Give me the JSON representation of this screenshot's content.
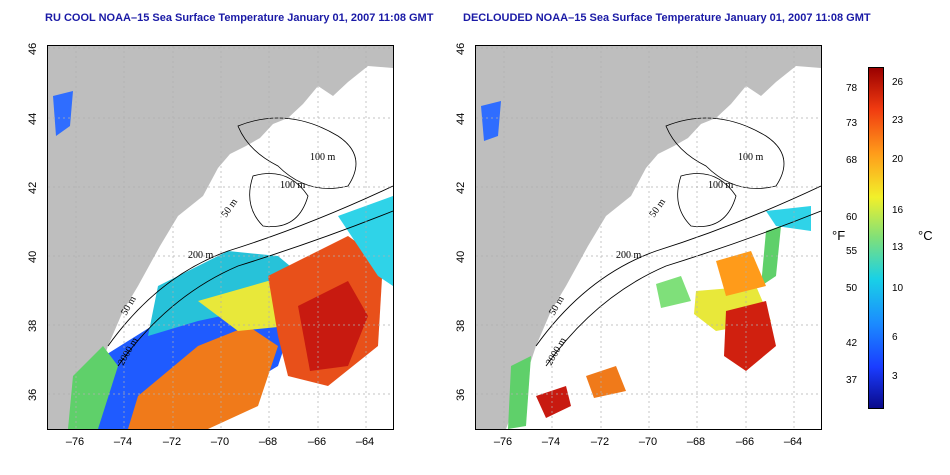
{
  "left_panel": {
    "title": "RU COOL NOAA–15 Sea Surface Temperature January 01, 2007 11:08 GMT"
  },
  "right_panel": {
    "title": "DECLOUDED NOAA–15 Sea Surface Temperature January 01, 2007 11:08 GMT"
  },
  "x_ticks": [
    "–76",
    "–74",
    "–72",
    "–70",
    "–68",
    "–66",
    "–64"
  ],
  "y_ticks": [
    "46",
    "44",
    "42",
    "40",
    "38",
    "36"
  ],
  "contour_labels": {
    "c100a": "100 m",
    "c100b": "100 m",
    "c50a": "50 m",
    "c50b": "50 m",
    "c200": "200 m",
    "c2000": "2000 m"
  },
  "colorbar": {
    "fahrenheit_ticks": [
      "78",
      "73",
      "68",
      "60",
      "55",
      "50",
      "42",
      "37"
    ],
    "celsius_ticks": [
      "26",
      "23",
      "20",
      "16",
      "13",
      "10",
      "6",
      "3"
    ],
    "fahrenheit_label": "°F",
    "celsius_label": "°C"
  },
  "colors": {
    "land": "#bebebe",
    "title": "#1a1aa6",
    "grid": "#b0b0b0"
  }
}
